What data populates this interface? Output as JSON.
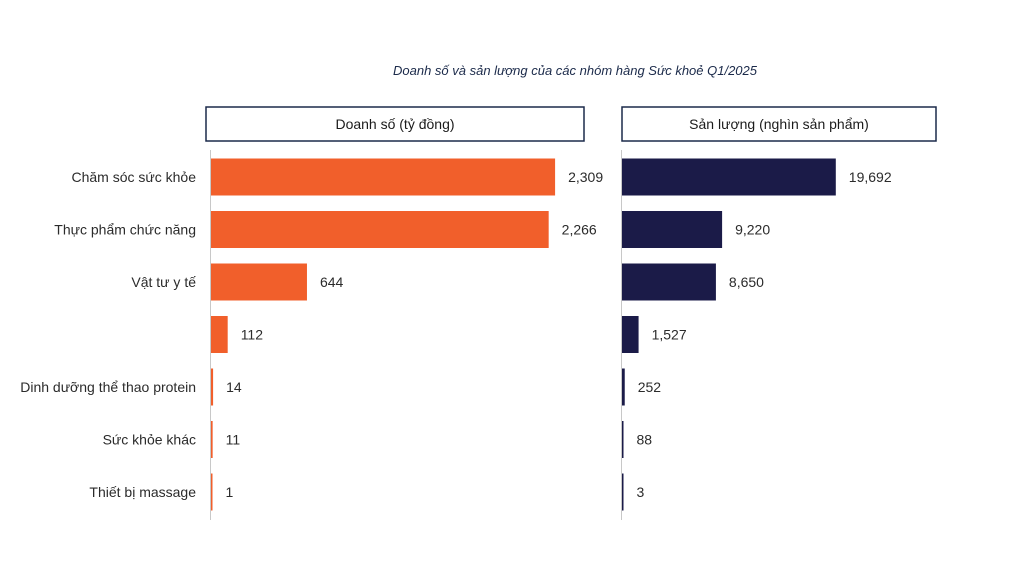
{
  "chart_data": {
    "type": "bar",
    "orientation": "horizontal",
    "title": "Doanh số và sản lượng của các nhóm hàng Sức khoẻ Q1/2025",
    "categories": [
      "Chăm sóc sức khỏe",
      "Thực phẩm chức năng",
      "Vật tư y tế",
      "",
      "Dinh dưỡng thể thao protein",
      "Sức khỏe khác",
      "Thiết bị massage"
    ],
    "panels": [
      {
        "name": "Doanh số (tỷ đồng)",
        "color": "#f15f2b",
        "values": [
          2309,
          2266,
          644,
          112,
          14,
          11,
          1
        ],
        "labels": [
          "2,309",
          "2,266",
          "644",
          "112",
          "14",
          "11",
          "1"
        ],
        "xlim": [
          0,
          2550
        ]
      },
      {
        "name": "Sản lượng (nghìn sản phẩm)",
        "color": "#1b1b48",
        "values": [
          19692,
          9220,
          8650,
          1527,
          252,
          88,
          3
        ],
        "labels": [
          "19,692",
          "9,220",
          "8,650",
          "1,527",
          "252",
          "88",
          "3"
        ],
        "xlim": [
          0,
          35000
        ]
      }
    ],
    "legend": "none",
    "grid": false
  }
}
